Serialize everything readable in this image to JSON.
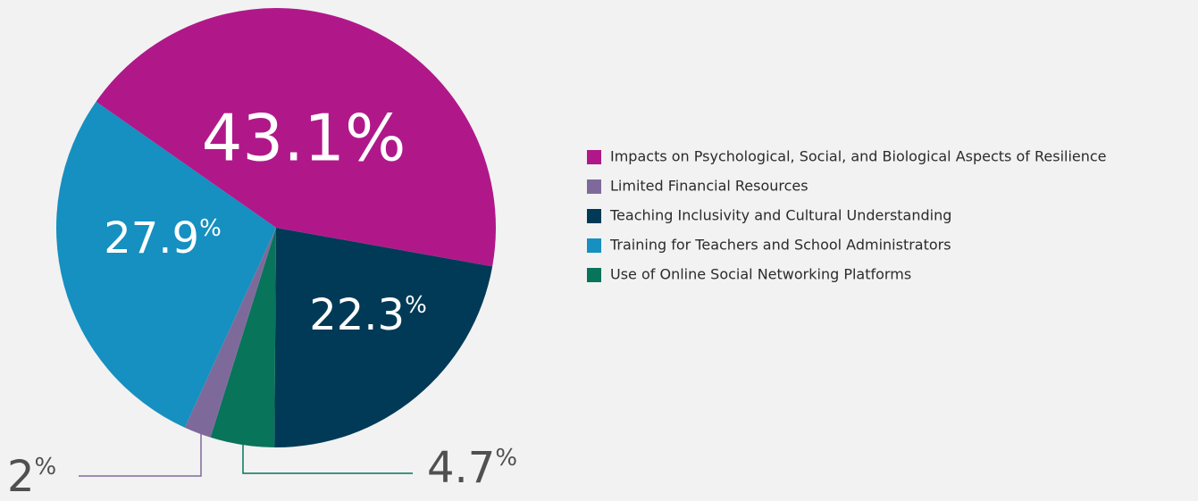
{
  "chart_data": {
    "type": "pie",
    "categories": [
      "Impacts on Psychological, Social, and Biological Aspects of Resilience",
      "Limited Financial Resources",
      "Teaching Inclusivity and Cultural Understanding",
      "Training for Teachers and School Administrators",
      "Use of Online Social Networking Platforms"
    ],
    "values": [
      43.1,
      2,
      22.3,
      27.9,
      4.7
    ],
    "value_labels": [
      "43.1%",
      "2%",
      "22.3%",
      "27.9%",
      "4.7%"
    ],
    "colors": [
      "#b0188a",
      "#7e6a9a",
      "#003a57",
      "#1590c0",
      "#08745a"
    ],
    "legend": "right"
  }
}
